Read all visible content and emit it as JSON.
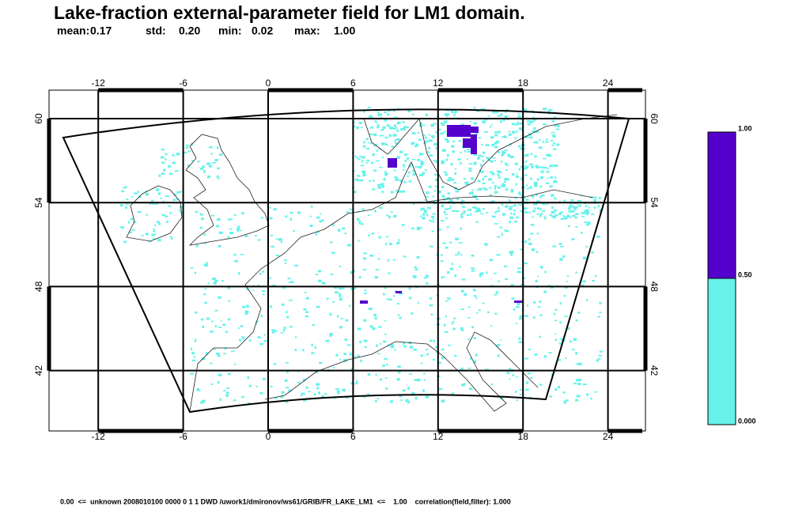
{
  "header": {
    "title": "Lake-fraction external-parameter field for LM1 domain.",
    "stats": [
      {
        "label": "mean:",
        "value": "0.17"
      },
      {
        "label": "std:",
        "value": "0.20"
      },
      {
        "label": "min:",
        "value": "0.02"
      },
      {
        "label": "max:",
        "value": "1.00"
      }
    ]
  },
  "map": {
    "lon_ticks": [
      -12,
      -6,
      0,
      6,
      12,
      18,
      24
    ],
    "lat_ticks": [
      42,
      48,
      54,
      60
    ],
    "lake_color": "#66f2ea",
    "deep_color": "#5500cc"
  },
  "colorbar": {
    "labels": [
      "1.00",
      "0.50",
      "0.000"
    ],
    "colors": [
      "#5500cc",
      "#66f2ea"
    ]
  },
  "footer": "0.00  <=  unknown 2008010100 0000 0 1 1 DWD /uwork1/dmironov/ws61/GRIB/FR_LAKE_LM1  <=    1.00    correlation(field,filter): 1.000"
}
